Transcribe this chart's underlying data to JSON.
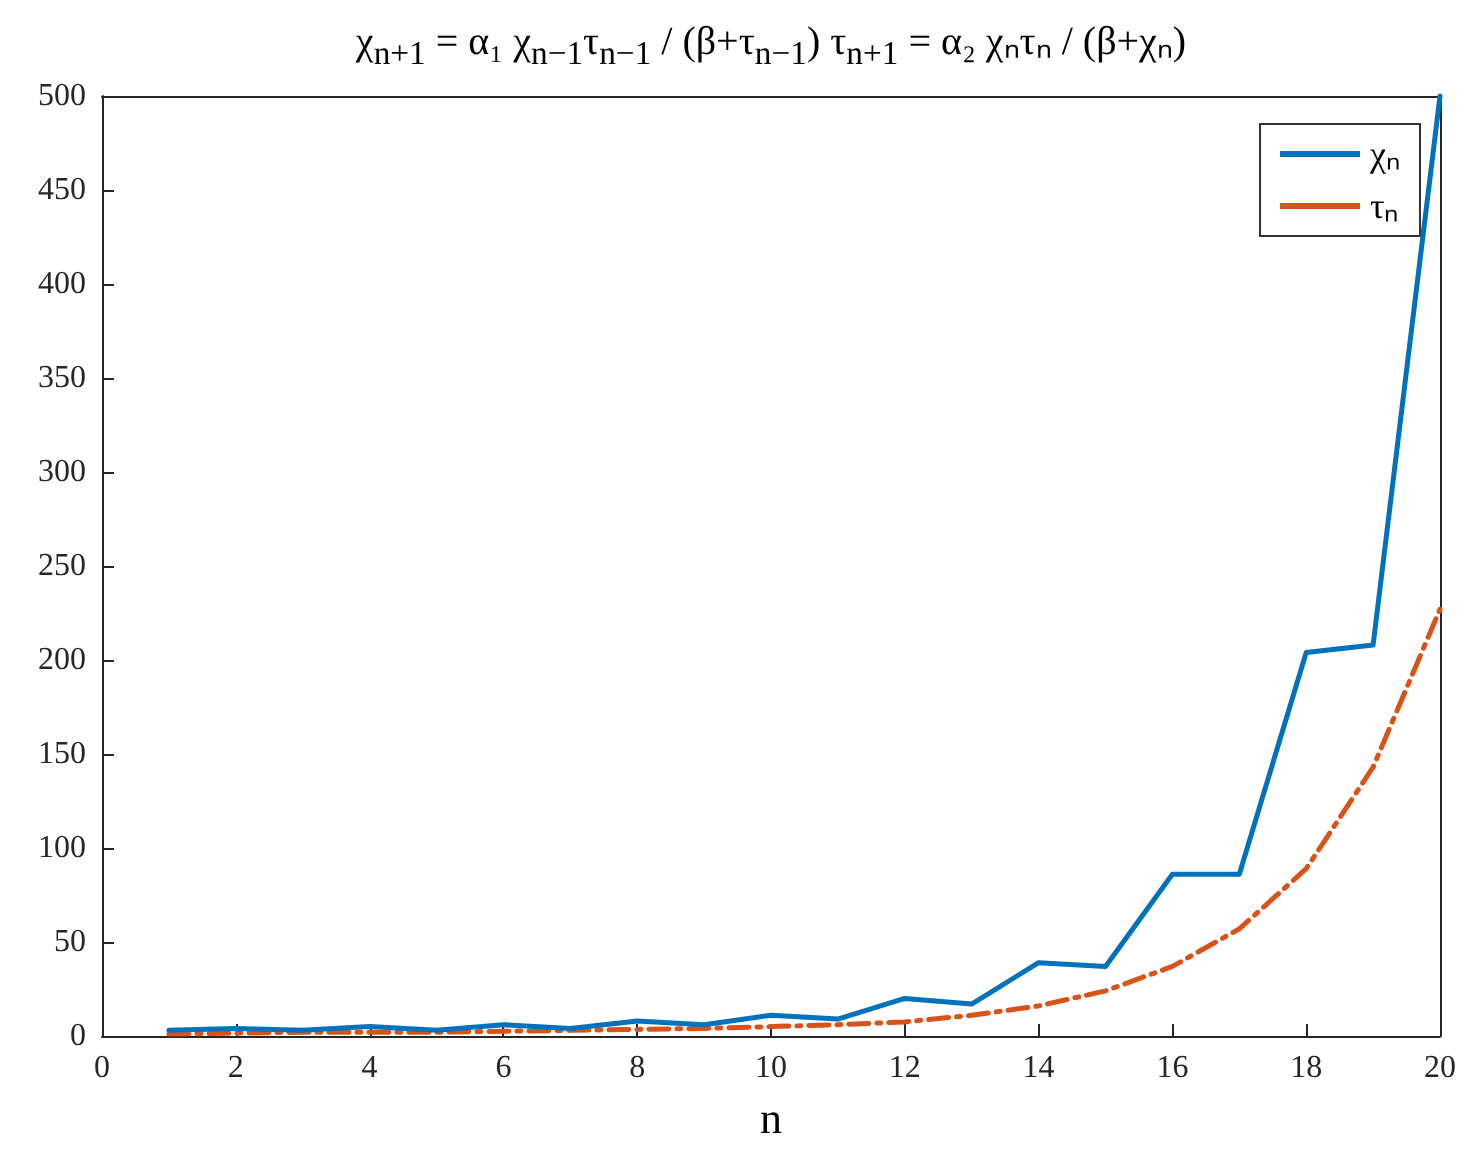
{
  "chart_data": {
    "type": "line",
    "title": "χ$_{n+1}$ = α₁ χ$_{n−1}$τ$_{n−1}$ / (β+τ$_{n−1}$)    τ$_{n+1}$ = α₂ χₙτₙ / (β+χₙ)",
    "xlabel": "n",
    "x": [
      1,
      2,
      3,
      4,
      5,
      6,
      7,
      8,
      9,
      10,
      11,
      12,
      13,
      14,
      15,
      16,
      17,
      18,
      19,
      20
    ],
    "series": [
      {
        "name": "χₙ",
        "color": "#0072bd",
        "line_style": "solid",
        "values": [
          3,
          4,
          3,
          5,
          3,
          6,
          4,
          8,
          6,
          11,
          9,
          20,
          17,
          39,
          37,
          86,
          86,
          204,
          208,
          500
        ]
      },
      {
        "name": "τₙ",
        "color": "#d95319",
        "line_style": "dashed",
        "values": [
          1,
          1.5,
          2,
          2,
          2,
          2.5,
          3,
          3.5,
          4,
          5,
          6,
          7.5,
          11,
          16,
          24,
          37,
          57,
          89,
          143,
          227
        ]
      }
    ],
    "xlim": [
      0,
      20
    ],
    "xticks": [
      0,
      2,
      4,
      6,
      8,
      10,
      12,
      14,
      16,
      18,
      20
    ],
    "ylim": [
      0,
      500
    ],
    "yticks": [
      0,
      50,
      100,
      150,
      200,
      250,
      300,
      350,
      400,
      450,
      500
    ],
    "grid": false,
    "legend": "top right",
    "marker": "none"
  }
}
